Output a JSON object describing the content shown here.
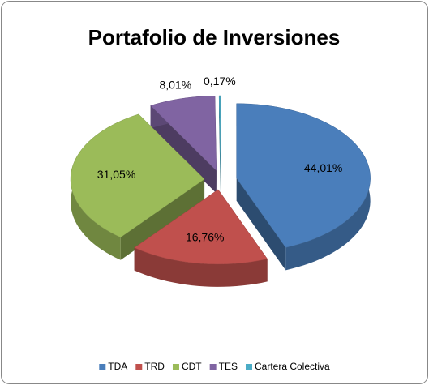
{
  "chart_data": {
    "type": "pie3d",
    "title": "Portafolio de Inversiones",
    "categories": [
      "TDA",
      "TRD",
      "CDT",
      "TES",
      "Cartera Colectiva"
    ],
    "values": [
      44.01,
      16.76,
      31.05,
      8.01,
      0.17
    ],
    "value_labels": [
      "44,01%",
      "16,76%",
      "31,05%",
      "8,01%",
      "0,17%"
    ],
    "colors": [
      "#4a7ebb",
      "#c0504d",
      "#9bbb59",
      "#8064a2",
      "#4bacc6"
    ],
    "legend": "bottom"
  }
}
